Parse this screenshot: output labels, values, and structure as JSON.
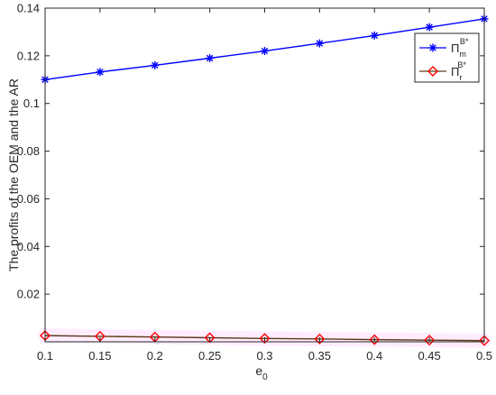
{
  "chart_data": {
    "type": "line",
    "xlabel": "e",
    "xlabel_subscript": "0",
    "ylabel": "The profits of the OEM and the AR",
    "x": [
      0.1,
      0.15,
      0.2,
      0.25,
      0.3,
      0.35,
      0.4,
      0.45,
      0.5
    ],
    "xlim": [
      0.1,
      0.5
    ],
    "ylim": [
      0,
      0.14
    ],
    "x_ticks": [
      "0.1",
      "0.15",
      "0.2",
      "0.25",
      "0.3",
      "0.35",
      "0.4",
      "0.45",
      "0.5"
    ],
    "y_ticks": [
      "0.02",
      "0.04",
      "0.06",
      "0.08",
      "0.1",
      "0.12",
      "0.14"
    ],
    "y_tick_values": [
      0.02,
      0.04,
      0.06,
      0.08,
      0.1,
      0.12,
      0.14
    ],
    "grid": false,
    "legend_position": "top-right",
    "series": [
      {
        "name": "Π",
        "name_sub": "m",
        "name_sup": "B*",
        "color": "#0000ff",
        "marker": "asterisk",
        "values": [
          0.11,
          0.1132,
          0.116,
          0.119,
          0.122,
          0.1252,
          0.1285,
          0.132,
          0.1355
        ]
      },
      {
        "name": "Π",
        "name_sub": "r",
        "name_sup": "B*",
        "color": "#ff0000",
        "line_color": "#5a3a1a",
        "marker": "diamond",
        "values": [
          0.0026,
          0.0023,
          0.002,
          0.0017,
          0.0014,
          0.0012,
          0.0009,
          0.0007,
          0.0005
        ]
      }
    ]
  }
}
